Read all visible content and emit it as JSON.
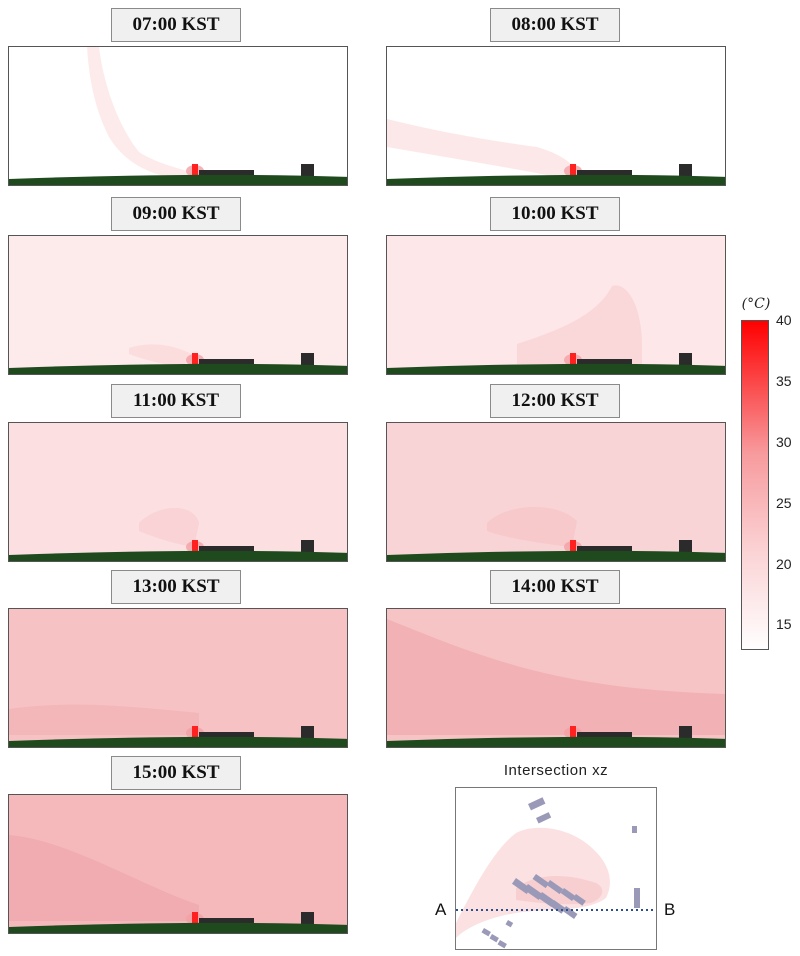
{
  "panels": [
    {
      "label": "07:00 KST",
      "fill": "#ffffff",
      "plume": "#fde9ea"
    },
    {
      "label": "08:00 KST",
      "fill": "#ffffff",
      "plume": "#fde6e7"
    },
    {
      "label": "09:00 KST",
      "fill": "#fdeaeb",
      "plume": "#fbdcdd"
    },
    {
      "label": "10:00 KST",
      "fill": "#fde7e8",
      "plume": "#fad6d8"
    },
    {
      "label": "11:00 KST",
      "fill": "#fbdfe1",
      "plume": "#f8d2d4"
    },
    {
      "label": "12:00 KST",
      "fill": "#f9d4d6",
      "plume": "#f6c8ca"
    },
    {
      "label": "13:00 KST",
      "fill": "#f6c2c4",
      "plume": "#f3b5b8"
    },
    {
      "label": "14:00 KST",
      "fill": "#f7c4c6",
      "plume": "#f1b0b3"
    },
    {
      "label": "15:00 KST",
      "fill": "#f5b9bc",
      "plume": "#f0abae"
    }
  ],
  "colorbar": {
    "unit": "(°C)",
    "ticks": [
      "40",
      "35",
      "30",
      "25",
      "20",
      "15"
    ],
    "min": 13,
    "max": 40,
    "color_low": "#ffffff",
    "color_high": "#ff0000"
  },
  "inset": {
    "title": "Intersection xz",
    "label_a": "A",
    "label_b": "B",
    "building_color": "#9a9ab8",
    "line_color": "#2a4f8a"
  },
  "colors": {
    "ground": "#1e4a1e",
    "building": "#2b2b2b",
    "heat_source": "#ff2020"
  }
}
